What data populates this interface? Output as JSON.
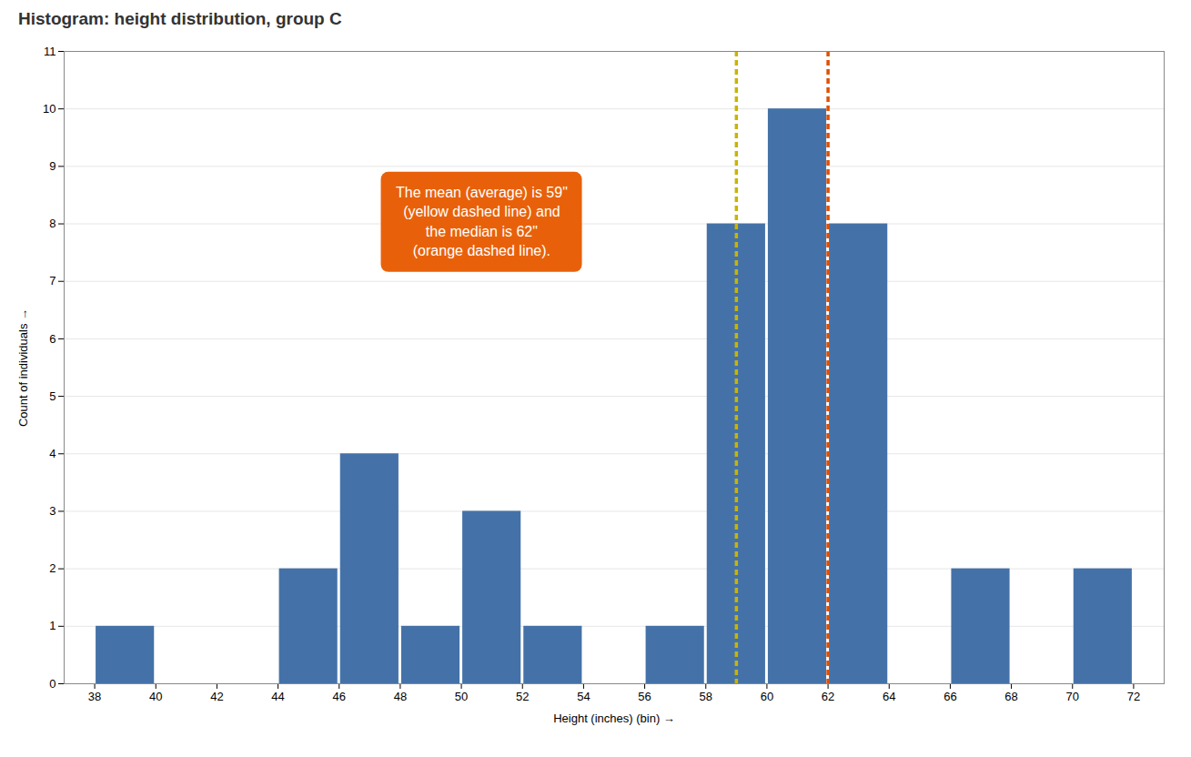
{
  "chart_data": {
    "type": "histogram",
    "title": "Histogram: height distribution, group C",
    "xlabel": "Height (inches) (bin)",
    "ylabel": "Count of individuals",
    "bins": [
      38,
      40,
      42,
      44,
      46,
      48,
      50,
      52,
      54,
      56,
      58,
      60,
      62,
      64,
      66,
      68,
      70,
      72
    ],
    "values": [
      1,
      0,
      0,
      2,
      4,
      1,
      3,
      1,
      0,
      1,
      8,
      10,
      8,
      0,
      2,
      0,
      2
    ],
    "color": "#4472a8",
    "xlim": [
      37,
      73
    ],
    "xticks": [
      38,
      40,
      42,
      44,
      46,
      48,
      50,
      52,
      54,
      56,
      58,
      60,
      62,
      64,
      66,
      68,
      70,
      72
    ],
    "ylim": [
      0,
      11
    ],
    "yticks": [
      0,
      1,
      2,
      3,
      4,
      5,
      6,
      7,
      8,
      9,
      10,
      11
    ],
    "grid": true,
    "vlines": [
      {
        "value": 59,
        "color": "#c8b400",
        "line_style": "dashed"
      },
      {
        "value": 62,
        "color": "#e05000",
        "line_style": "dashed"
      }
    ],
    "annotation": {
      "text": "The mean (average) is 59\"\n(yellow dashed line) and\nthe median is 62\"\n(orange dashed line).",
      "color": "#e8610a"
    }
  }
}
